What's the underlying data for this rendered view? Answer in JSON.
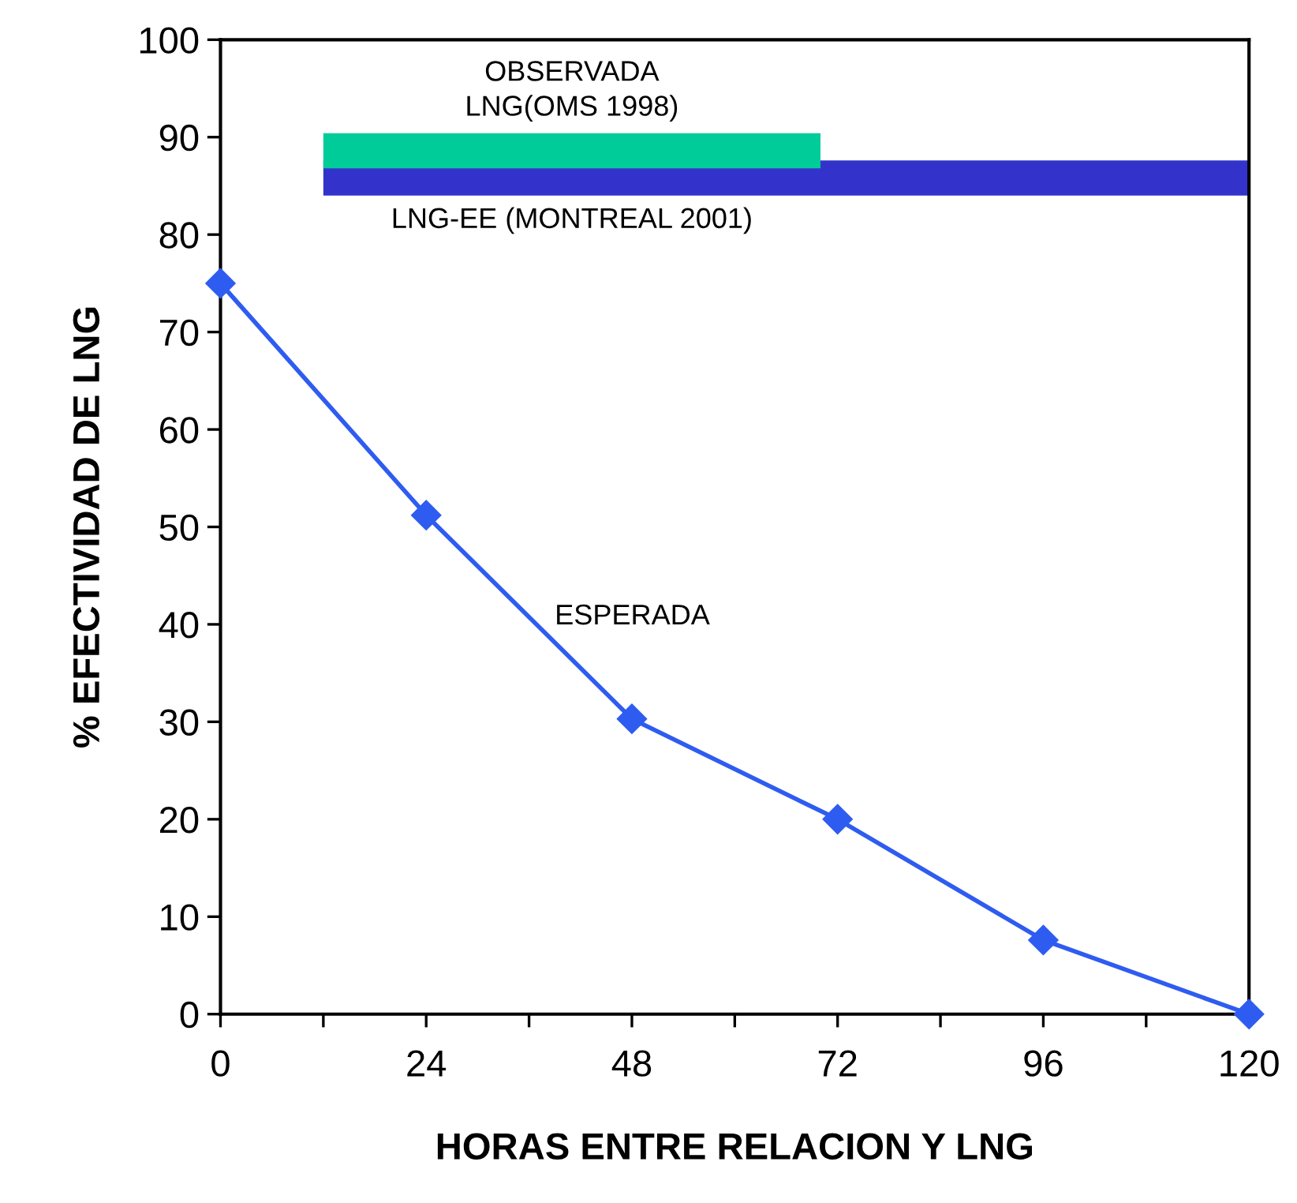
{
  "chart_data": {
    "type": "line",
    "xlabel": "HORAS ENTRE RELACION Y LNG",
    "ylabel": "% EFECTIVIDAD DE LNG",
    "series": [
      {
        "name": "LNG-EE (MONTREAL 2001)",
        "type": "line",
        "color": "#3333cc",
        "marker": "none",
        "x": [
          12,
          120
        ],
        "values": [
          85.8,
          85.8
        ]
      },
      {
        "name": "OBSERVADA\nLNG(OMS 1998)",
        "type": "line",
        "color": "#00cc99",
        "marker": "none",
        "x": [
          12,
          70
        ],
        "values": [
          88.6,
          88.6
        ]
      },
      {
        "name": "ESPERADA",
        "color": "#2f5cf0",
        "marker": "diamond",
        "x": [
          0,
          24,
          48,
          72,
          96,
          120
        ],
        "values": [
          75,
          51.2,
          30.3,
          20,
          7.6,
          0
        ]
      }
    ],
    "xlim": [
      0,
      120
    ],
    "ylim": [
      0,
      100
    ],
    "xticks": [
      0,
      {
        "value": 12,
        "label": null
      },
      24,
      {
        "value": 36,
        "label": null
      },
      48,
      {
        "value": 60,
        "label": null
      },
      72,
      {
        "value": 84,
        "label": null
      },
      96,
      {
        "value": 108,
        "label": null
      },
      120
    ],
    "yticks": [
      0,
      10,
      20,
      30,
      40,
      50,
      60,
      70,
      80,
      90,
      100
    ],
    "grid": false,
    "legend": false
  }
}
